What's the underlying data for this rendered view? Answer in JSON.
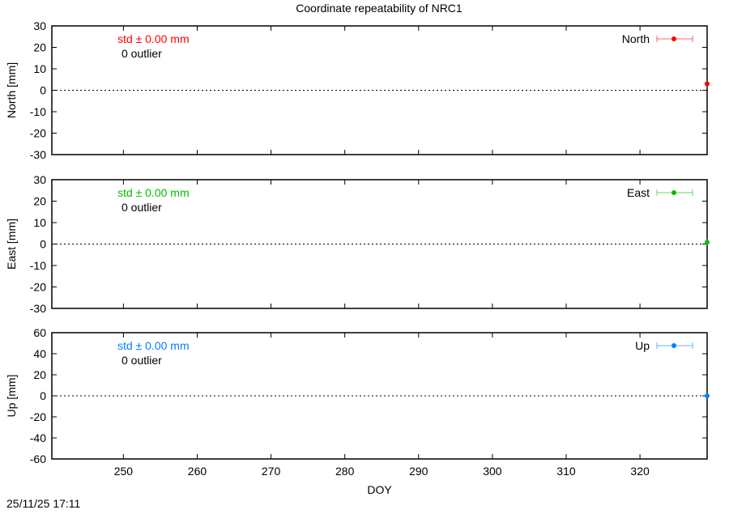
{
  "footer_timestamp": "25/11/25 17:11",
  "chart_data": [
    {
      "type": "scatter",
      "title": "Coordinate repeatability of NRC1",
      "xlabel": "",
      "ylabel": "North [mm]",
      "xlim": [
        240.3,
        329.1
      ],
      "ylim": [
        -30,
        30
      ],
      "yticks": [
        -30,
        -20,
        -10,
        0,
        10,
        20,
        30
      ],
      "xticks": [
        250,
        260,
        270,
        280,
        290,
        300,
        310,
        320
      ],
      "grid": false,
      "zero_line": "dotted",
      "legend_position": "top-right",
      "series": [
        {
          "name": "North",
          "color": "#ff0000",
          "x": [
            329.1
          ],
          "y": [
            3
          ]
        }
      ],
      "stat_text": "std ± 0.00 mm",
      "outlier_text": "0 outlier"
    },
    {
      "type": "scatter",
      "xlabel": "",
      "ylabel": "East [mm]",
      "xlim": [
        240.3,
        329.1
      ],
      "ylim": [
        -30,
        30
      ],
      "yticks": [
        -30,
        -20,
        -10,
        0,
        10,
        20,
        30
      ],
      "xticks": [
        250,
        260,
        270,
        280,
        290,
        300,
        310,
        320
      ],
      "grid": false,
      "zero_line": "dotted",
      "legend_position": "top-right",
      "series": [
        {
          "name": "East",
          "color": "#00c000",
          "x": [
            329.1
          ],
          "y": [
            0.8
          ]
        }
      ],
      "stat_text": "std ± 0.00 mm",
      "outlier_text": "0 outlier"
    },
    {
      "type": "scatter",
      "xlabel": "DOY",
      "ylabel": "Up [mm]",
      "xlim": [
        240.3,
        329.1
      ],
      "ylim": [
        -60,
        60
      ],
      "yticks": [
        -60,
        -40,
        -20,
        0,
        20,
        40,
        60
      ],
      "xticks": [
        250,
        260,
        270,
        280,
        290,
        300,
        310,
        320
      ],
      "xtick_labels": [
        "250",
        "260",
        "270",
        "280",
        "290",
        "300",
        "310",
        "320"
      ],
      "grid": false,
      "zero_line": "dotted",
      "legend_position": "top-right",
      "series": [
        {
          "name": "Up",
          "color": "#0080ff",
          "x": [
            329.1
          ],
          "y": [
            0
          ]
        }
      ],
      "stat_text": "std ± 0.00 mm",
      "outlier_text": "0 outlier"
    }
  ]
}
